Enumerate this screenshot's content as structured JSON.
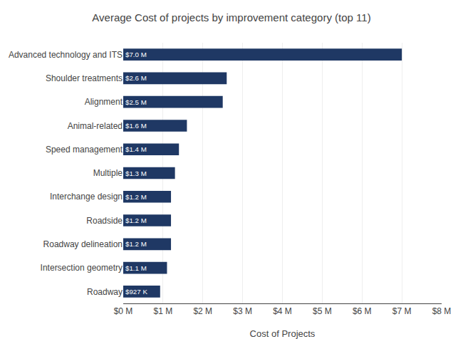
{
  "chart_data": {
    "type": "bar",
    "orientation": "horizontal",
    "title": "Average Cost of projects by improvement category (top 11)",
    "categories": [
      "Advanced technology and ITS",
      "Shoulder treatments",
      "Alignment",
      "Animal-related",
      "Speed management",
      "Multiple",
      "Interchange design",
      "Roadside",
      "Roadway delineation",
      "Intersection geometry",
      "Roadway"
    ],
    "values": [
      7.0,
      2.6,
      2.5,
      1.6,
      1.4,
      1.3,
      1.2,
      1.2,
      1.2,
      1.1,
      0.927
    ],
    "value_labels": [
      "$7.0 M",
      "$2.6 M",
      "$2.5 M",
      "$1.6 M",
      "$1.4 M",
      "$1.3 M",
      "$1.2 M",
      "$1.2 M",
      "$1.2 M",
      "$1.1 M",
      "$927 K"
    ],
    "data_labels": true,
    "color": "#1f3864",
    "xlabel": "Cost of Projects",
    "xlim": [
      0,
      8
    ],
    "xticks": [
      {
        "value": 0,
        "label": "$0 M"
      },
      {
        "value": 1,
        "label": "$1 M"
      },
      {
        "value": 2,
        "label": "$2 M"
      },
      {
        "value": 3,
        "label": "$3 M"
      },
      {
        "value": 4,
        "label": "$4 M"
      },
      {
        "value": 5,
        "label": "$5 M"
      },
      {
        "value": 6,
        "label": "$6 M"
      },
      {
        "value": 7,
        "label": "$7 M"
      },
      {
        "value": 8,
        "label": "$8 M"
      }
    ],
    "grid": true
  }
}
